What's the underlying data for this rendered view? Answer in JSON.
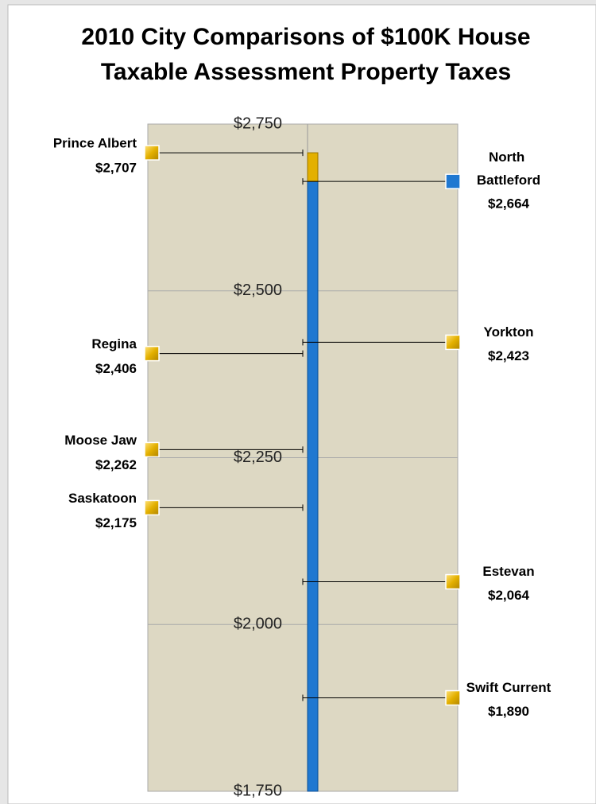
{
  "chart_data": {
    "type": "pin",
    "title": [
      "2010 City Comparisons of $100K House",
      "Taxable Assessment Property Taxes"
    ],
    "categories": [
      "Prince Albert",
      "North Battleford",
      "Yorkton",
      "Regina",
      "Moose Jaw",
      "Saskatoon",
      "Estevan",
      "Swift Current"
    ],
    "values": [
      2707,
      2664,
      2423,
      2406,
      2262,
      2175,
      2064,
      1890
    ],
    "value_labels": [
      "$2,707",
      "$2,664",
      "$2,423",
      "$2,406",
      "$2,262",
      "$2,175",
      "$2,064",
      "$1,890"
    ],
    "colors": [
      "#e3b000",
      "#1f78d1",
      "#e3b000",
      "#e3b000",
      "#e3b000",
      "#e3b000",
      "#e3b000",
      "#e3b000"
    ],
    "ylim": [
      1750,
      2750
    ],
    "yticks": [
      {
        "value": 1750,
        "label": "$1,750"
      },
      {
        "value": 2000,
        "label": "$2,000"
      },
      {
        "value": 2250,
        "label": "$2,250"
      },
      {
        "value": 2500,
        "label": "$2,500"
      },
      {
        "value": 2750,
        "label": "$2,750"
      }
    ],
    "grid": true
  }
}
